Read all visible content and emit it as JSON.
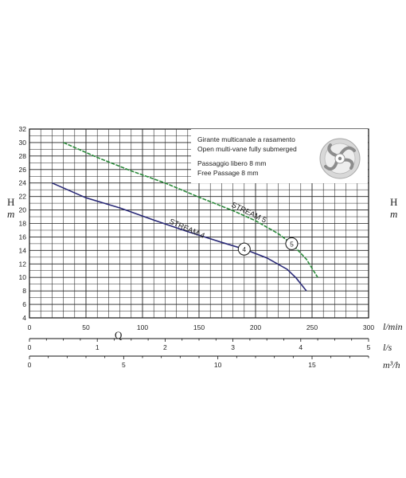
{
  "chart_data": {
    "type": "line",
    "y_axis": {
      "label": "H",
      "unit": "m",
      "range": [
        4,
        32
      ],
      "ticks": [
        4,
        6,
        8,
        10,
        12,
        14,
        16,
        18,
        20,
        22,
        24,
        26,
        28,
        30,
        32
      ]
    },
    "x_axis_label": "Q",
    "x_axes": [
      {
        "unit": "l/min",
        "range": [
          0,
          300
        ],
        "ticks": [
          "0",
          "50",
          "100",
          "150",
          "200",
          "250",
          "300"
        ]
      },
      {
        "unit": "l/s",
        "range": [
          0,
          5
        ],
        "ticks": [
          "0",
          "1",
          "2",
          "3",
          "4",
          "5"
        ]
      },
      {
        "unit": "m³/h",
        "range": [
          0,
          18
        ],
        "ticks": [
          "0",
          "5",
          "10",
          "15"
        ]
      }
    ],
    "grid": true,
    "series": [
      {
        "name": "STREAM 5",
        "marker": "5",
        "color": "#2a8a3a",
        "dashed": true,
        "x": [
          30,
          60,
          90,
          120,
          150,
          180,
          200,
          220,
          232,
          245,
          255
        ],
        "y": [
          30,
          27.8,
          25.8,
          24,
          21.9,
          19.9,
          18.4,
          16.5,
          15,
          12.7,
          10
        ]
      },
      {
        "name": "STREAM 4",
        "marker": "4",
        "color": "#2a2a78",
        "dashed": false,
        "x": [
          20,
          50,
          80,
          110,
          140,
          170,
          190,
          210,
          228,
          236,
          245
        ],
        "y": [
          24,
          21.8,
          20.3,
          18.5,
          16.8,
          15.2,
          14.2,
          12.9,
          11.2,
          9.9,
          8
        ]
      }
    ],
    "annotations": {
      "lines": [
        "Girante multicanale a rasamento",
        "Open multi-vane fully submerged",
        "",
        "Passaggio libero 8 mm",
        "Free Passage 8 mm"
      ]
    }
  }
}
